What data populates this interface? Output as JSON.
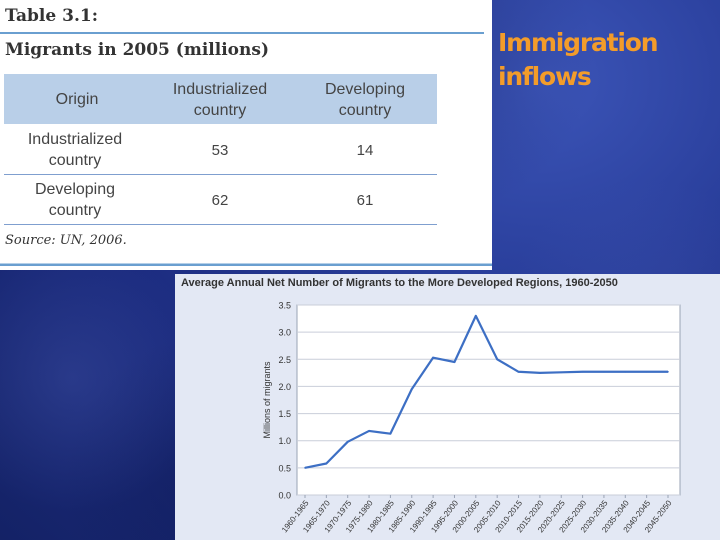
{
  "slide": {
    "title_line1": "Immigration",
    "title_line2": "inflows"
  },
  "table": {
    "caption": "Table 3.1:",
    "title": "Migrants in 2005 (millions)",
    "headers": {
      "origin": "Origin",
      "industrialized_line1": "Industrialized",
      "industrialized_line2": "country",
      "developing_line1": "Developing",
      "developing_line2": "country"
    },
    "rows": [
      {
        "label_line1": "Industrialized",
        "label_line2": "country",
        "industrialized": "53",
        "developing": "14"
      },
      {
        "label_line1": "Developing",
        "label_line2": "country",
        "industrialized": "62",
        "developing": "61"
      }
    ],
    "source": "Source: UN, 2006."
  },
  "chart_data": {
    "type": "line",
    "title": "Average Annual Net Number of Migrants to the More Developed Regions, 1960-2050",
    "ylabel": "Millions of migrants",
    "xlabel": "",
    "ylim": [
      0,
      3.5
    ],
    "yticks": [
      "0.0",
      "0.5",
      "1.0",
      "1.5",
      "2.0",
      "2.5",
      "3.0",
      "3.5"
    ],
    "grid": true,
    "x": [
      "1960-1965",
      "1965-1970",
      "1970-1975",
      "1975-1980",
      "1980-1985",
      "1985-1990",
      "1990-1995",
      "1995-2000",
      "2000-2005",
      "2005-2010",
      "2010-2015",
      "2015-2020",
      "2020-2025",
      "2025-2030",
      "2030-2035",
      "2035-2040",
      "2040-2045",
      "2045-2050"
    ],
    "series": [
      {
        "values": [
          0.5,
          0.58,
          0.98,
          1.18,
          1.13,
          1.95,
          2.53,
          2.45,
          3.3,
          2.5,
          2.27,
          2.25,
          2.26,
          2.27,
          2.27,
          2.27,
          2.27,
          2.27
        ]
      }
    ],
    "line_color": "#3d6fc4"
  }
}
